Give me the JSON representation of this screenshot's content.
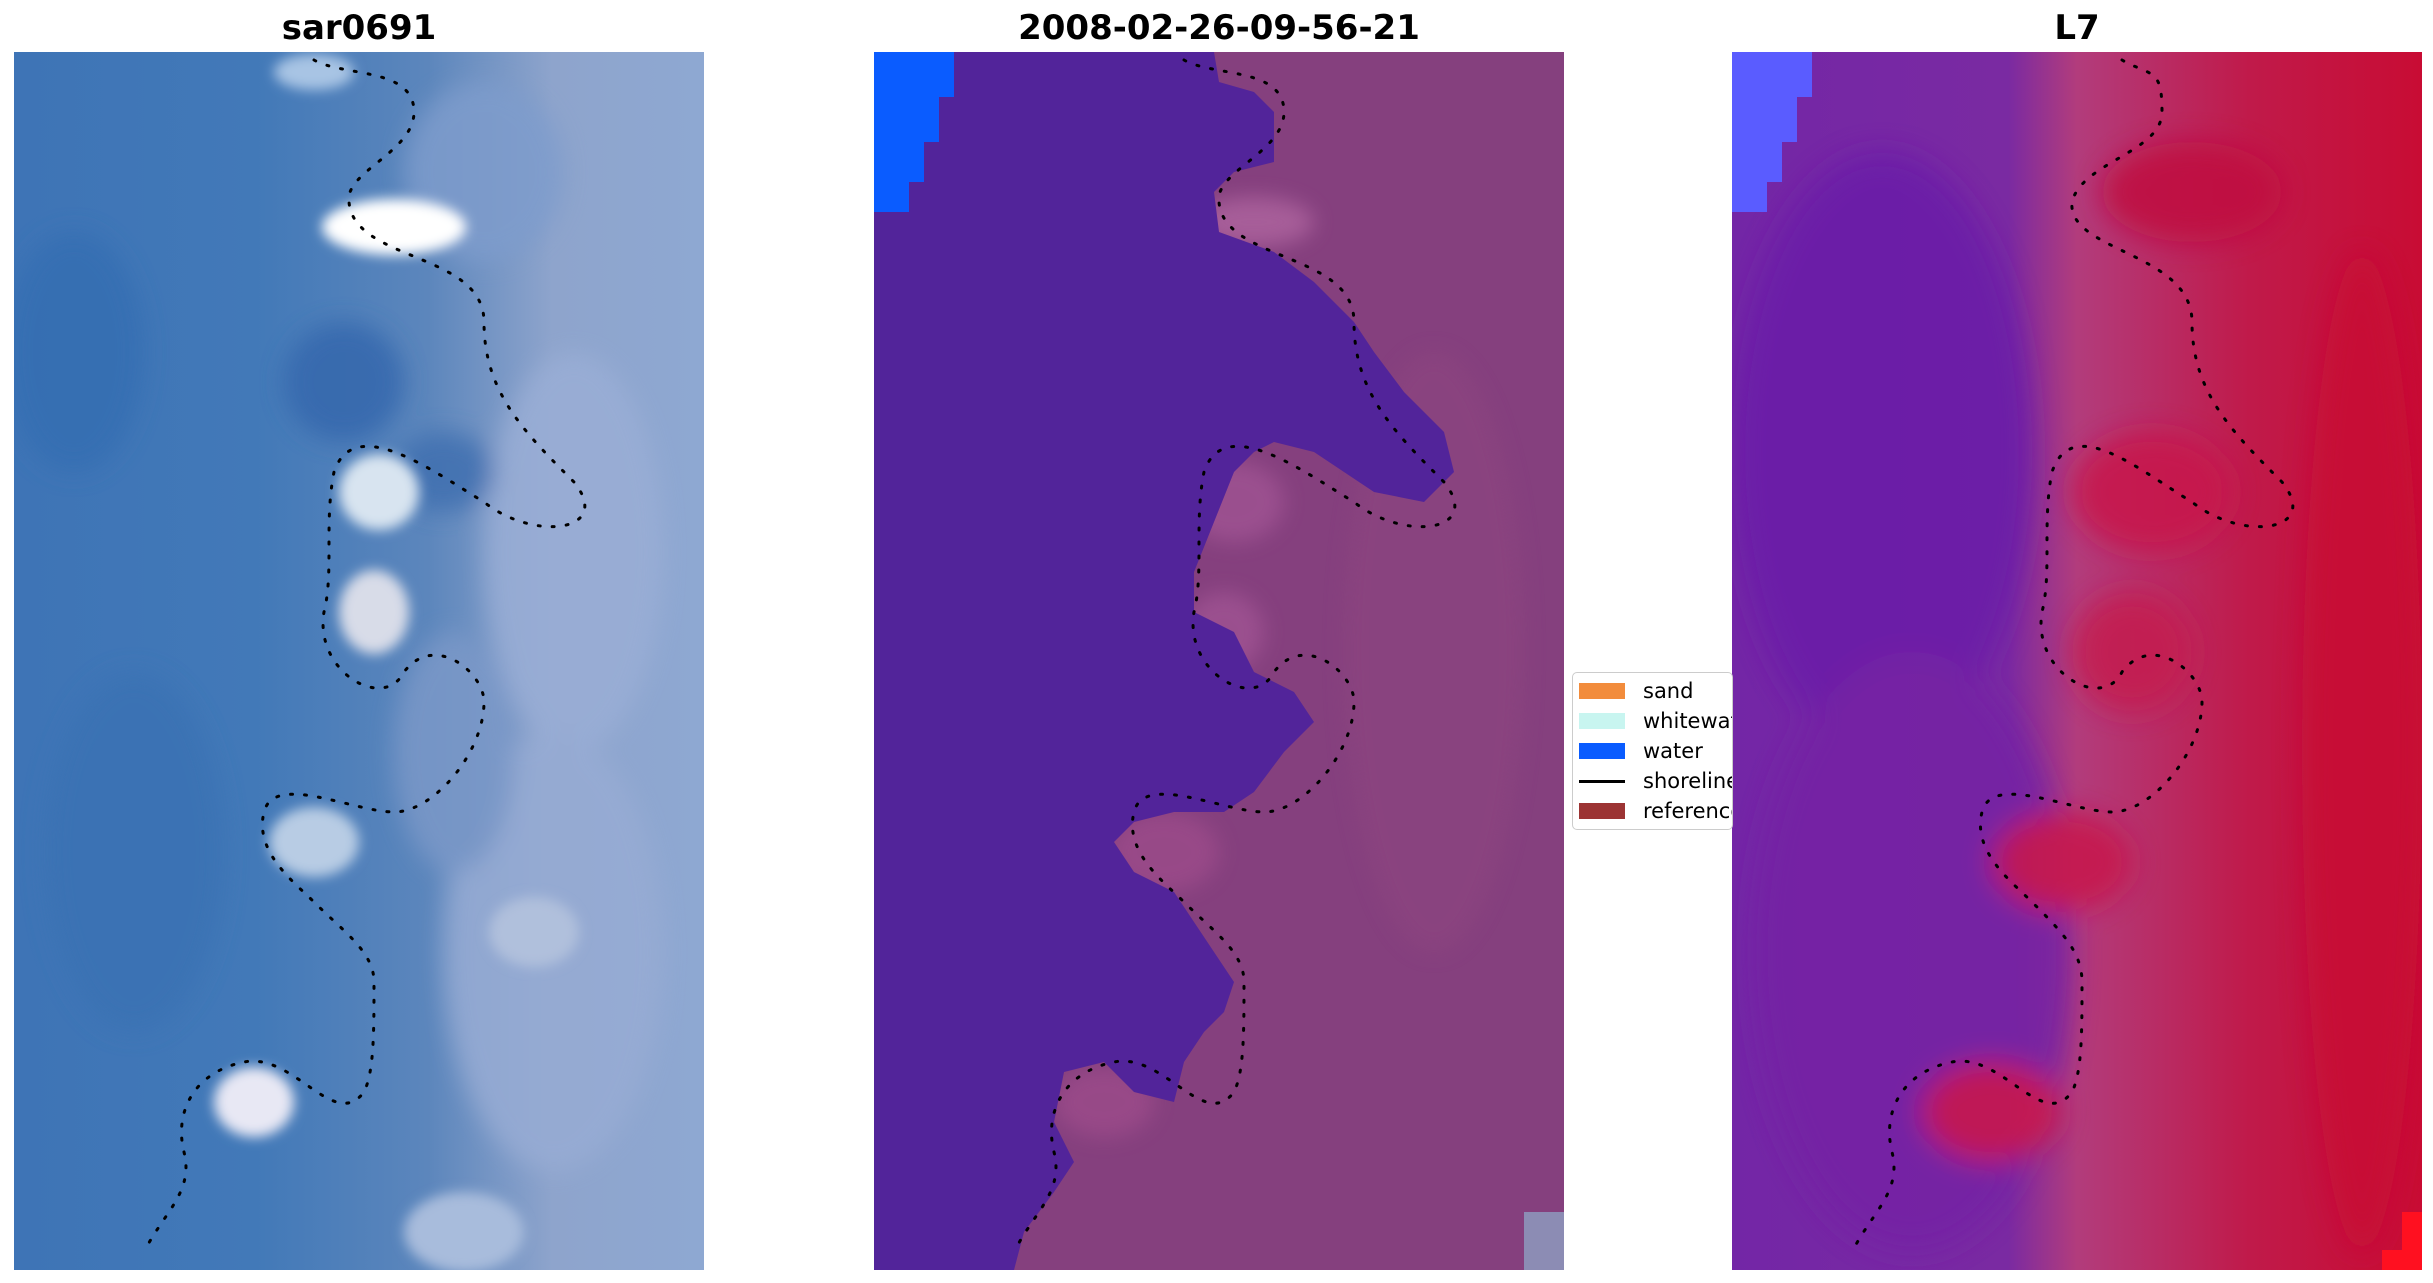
{
  "panels": [
    {
      "title": "sar0691"
    },
    {
      "title": "2008-02-26-09-56-21"
    },
    {
      "title": "L7"
    }
  ],
  "legend": {
    "items": [
      {
        "label": "sand",
        "kind": "patch",
        "color": "#f28c3c"
      },
      {
        "label": "whitewater",
        "kind": "patch",
        "color": "#c8f5f0"
      },
      {
        "label": "water",
        "kind": "patch",
        "color": "#0a5cff"
      },
      {
        "label": "shoreline",
        "kind": "line",
        "color": "#000000"
      },
      {
        "label": "reference",
        "kind": "patch",
        "color": "#9c3434"
      }
    ]
  },
  "colors": {
    "water_classified": "#52249a",
    "land_classified": "#85407e",
    "water_mask_blue": "#0a5cff",
    "l7_purple": "#7424a4",
    "l7_red": "#c8103c",
    "rgb_blue": "#3f76b6",
    "rgb_light": "#8da4cc"
  }
}
